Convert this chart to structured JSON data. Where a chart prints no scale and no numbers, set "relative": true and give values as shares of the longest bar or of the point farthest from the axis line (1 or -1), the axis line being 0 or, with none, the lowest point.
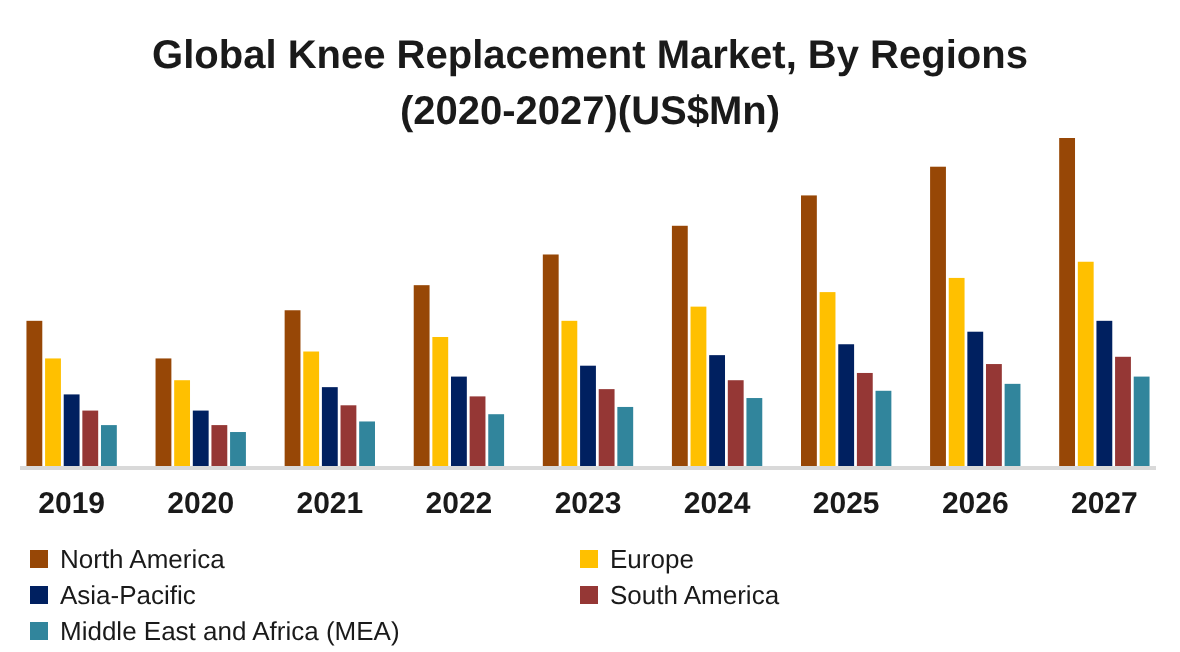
{
  "chart_data": {
    "type": "bar",
    "title": "Global Knee Replacement Market, By Regions",
    "subtitle": "(2020-2027)(US$Mn)",
    "relative": true,
    "legend": "bottom",
    "categories": [
      "2019",
      "2020",
      "2021",
      "2022",
      "2023",
      "2024",
      "2025",
      "2026",
      "2027"
    ],
    "series": [
      {
        "name": "North America",
        "color": "#974706",
        "values": [
          0.446,
          0.332,
          0.478,
          0.554,
          0.647,
          0.734,
          0.826,
          0.913,
          1
        ]
      },
      {
        "name": "Europe",
        "color": "#ffc000",
        "values": [
          0.332,
          0.266,
          0.353,
          0.397,
          0.446,
          0.489,
          0.533,
          0.576,
          0.625
        ]
      },
      {
        "name": "Asia-Pacific",
        "color": "#002060",
        "values": [
          0.223,
          0.174,
          0.245,
          0.277,
          0.31,
          0.342,
          0.375,
          0.413,
          0.446
        ]
      },
      {
        "name": "South America",
        "color": "#953735",
        "values": [
          0.174,
          0.13,
          0.19,
          0.217,
          0.239,
          0.266,
          0.288,
          0.315,
          0.337
        ]
      },
      {
        "name": "Middle East and Africa (MEA)",
        "color": "#31859c",
        "values": [
          0.13,
          0.109,
          0.141,
          0.163,
          0.185,
          0.212,
          0.234,
          0.255,
          0.277
        ]
      }
    ]
  }
}
